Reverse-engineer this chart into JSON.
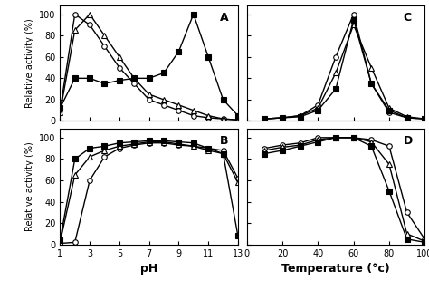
{
  "panel_A": {
    "label": "A",
    "series": [
      {
        "x": [
          1,
          2,
          3,
          4,
          5,
          6,
          7,
          8,
          9,
          10,
          11,
          12,
          13
        ],
        "y": [
          10,
          100,
          90,
          70,
          50,
          35,
          20,
          15,
          10,
          5,
          3,
          2,
          1
        ],
        "marker": "o",
        "fill": false
      },
      {
        "x": [
          1,
          2,
          3,
          4,
          5,
          6,
          7,
          8,
          9,
          10,
          11,
          12,
          13
        ],
        "y": [
          8,
          85,
          100,
          80,
          60,
          40,
          25,
          20,
          15,
          10,
          5,
          2,
          1
        ],
        "marker": "^",
        "fill": false
      },
      {
        "x": [
          1,
          2,
          3,
          4,
          5,
          6,
          7,
          8,
          9,
          10,
          11,
          12,
          13
        ],
        "y": [
          12,
          40,
          40,
          35,
          38,
          40,
          40,
          45,
          65,
          100,
          60,
          20,
          5
        ],
        "marker": "s",
        "fill": true
      }
    ],
    "xlim": [
      1,
      13
    ],
    "ylim": [
      0,
      108
    ],
    "xticks": [
      1,
      3,
      5,
      7,
      9,
      11,
      13
    ],
    "yticks": [
      0,
      20,
      40,
      60,
      80,
      100
    ]
  },
  "panel_B": {
    "label": "B",
    "series": [
      {
        "x": [
          1,
          2,
          3,
          4,
          5,
          6,
          7,
          8,
          9,
          10,
          11,
          12,
          13
        ],
        "y": [
          1,
          2,
          60,
          82,
          90,
          93,
          95,
          95,
          93,
          92,
          90,
          88,
          62
        ],
        "marker": "o",
        "fill": false
      },
      {
        "x": [
          1,
          2,
          3,
          4,
          5,
          6,
          7,
          8,
          9,
          10,
          11,
          12,
          13
        ],
        "y": [
          2,
          65,
          82,
          88,
          92,
          94,
          96,
          96,
          94,
          92,
          88,
          85,
          58
        ],
        "marker": "^",
        "fill": false
      },
      {
        "x": [
          1,
          2,
          3,
          4,
          5,
          6,
          7,
          8,
          9,
          10,
          11,
          12,
          13
        ],
        "y": [
          4,
          80,
          90,
          92,
          95,
          96,
          97,
          97,
          96,
          95,
          90,
          85,
          8
        ],
        "marker": "s",
        "fill": true
      }
    ],
    "xlim": [
      1,
      13
    ],
    "ylim": [
      0,
      108
    ],
    "xticks": [
      1,
      3,
      5,
      7,
      9,
      11,
      13
    ],
    "yticks": [
      0,
      20,
      40,
      60,
      80,
      100
    ],
    "xlabel": "pH"
  },
  "panel_C": {
    "label": "C",
    "series": [
      {
        "x": [
          10,
          20,
          30,
          40,
          50,
          60,
          70,
          80,
          90,
          100
        ],
        "y": [
          2,
          3,
          5,
          15,
          60,
          100,
          35,
          8,
          3,
          2
        ],
        "marker": "o",
        "fill": false
      },
      {
        "x": [
          10,
          20,
          30,
          40,
          50,
          60,
          70,
          80,
          90,
          100
        ],
        "y": [
          2,
          3,
          5,
          12,
          45,
          90,
          50,
          12,
          4,
          2
        ],
        "marker": "^",
        "fill": false
      },
      {
        "x": [
          10,
          20,
          30,
          40,
          50,
          60,
          70,
          80,
          90,
          100
        ],
        "y": [
          2,
          3,
          4,
          10,
          30,
          95,
          35,
          10,
          3,
          2
        ],
        "marker": "s",
        "fill": true
      }
    ],
    "xlim": [
      10,
      100
    ],
    "ylim": [
      0,
      108
    ],
    "xticks": [
      0,
      20,
      40,
      60,
      80,
      100
    ],
    "yticks": [
      0,
      20,
      40,
      60,
      80,
      100
    ]
  },
  "panel_D": {
    "label": "D",
    "series": [
      {
        "x": [
          10,
          20,
          30,
          40,
          50,
          60,
          70,
          80,
          90,
          100
        ],
        "y": [
          90,
          93,
          95,
          100,
          100,
          100,
          98,
          92,
          30,
          5
        ],
        "marker": "o",
        "fill": false
      },
      {
        "x": [
          10,
          20,
          30,
          40,
          50,
          60,
          70,
          80,
          90,
          100
        ],
        "y": [
          88,
          91,
          93,
          98,
          100,
          100,
          96,
          75,
          10,
          3
        ],
        "marker": "^",
        "fill": false
      },
      {
        "x": [
          10,
          20,
          30,
          40,
          50,
          60,
          70,
          80,
          90,
          100
        ],
        "y": [
          85,
          88,
          92,
          96,
          100,
          100,
          92,
          50,
          5,
          2
        ],
        "marker": "s",
        "fill": true
      }
    ],
    "xlim": [
      10,
      100
    ],
    "ylim": [
      0,
      108
    ],
    "xticks": [
      0,
      20,
      40,
      60,
      80,
      100
    ],
    "yticks": [
      0,
      20,
      40,
      60,
      80,
      100
    ],
    "xlabel": "Temperature (°c)"
  },
  "ylabel": "Relative activity (%)",
  "marker_size": 4,
  "linewidth": 1.0
}
